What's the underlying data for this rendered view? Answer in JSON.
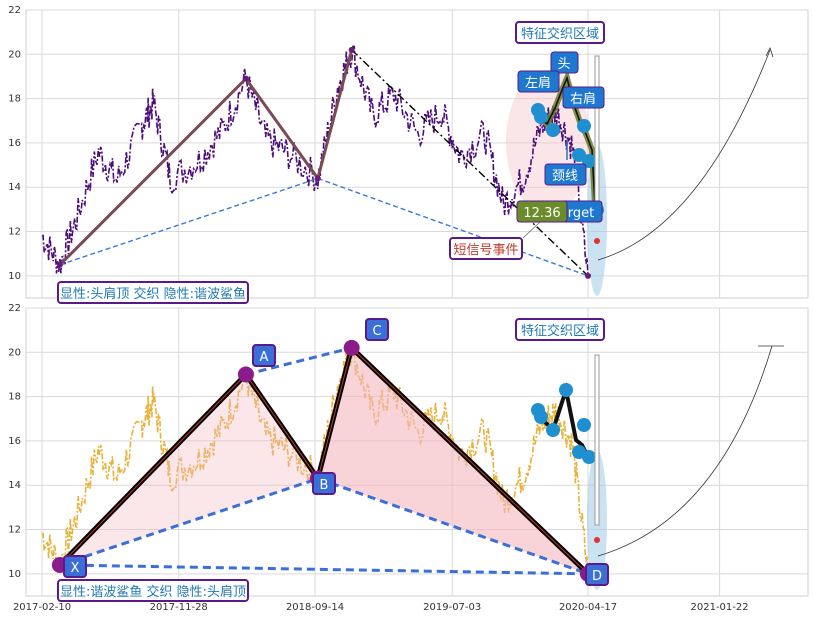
{
  "chart_data": [
    {
      "type": "line",
      "panel": "top",
      "ylim": [
        9,
        22
      ],
      "yticks": [
        10,
        12,
        14,
        16,
        18,
        20,
        22
      ],
      "grid": true,
      "series": [
        {
          "role": "price",
          "color": "#4b0d7a"
        },
        {
          "role": "harmonic-legs",
          "color": "#7a4a55",
          "points": [
            [
              "2017-03-20",
              10.5
            ],
            [
              "2018-04-20",
              18.9
            ],
            [
              "2018-09-20",
              14.4
            ],
            [
              "2018-12-01",
              20.2
            ]
          ]
        },
        {
          "role": "shoulders-outline",
          "color": "#6b7d2a"
        },
        {
          "role": "projection",
          "color": "#000000",
          "style": "dashdot",
          "points": [
            [
              "2018-12-01",
              20.2
            ],
            [
              "2020-04-17",
              10.0
            ]
          ]
        },
        {
          "role": "base-line",
          "color": "#3a7bd5",
          "style": "dashed",
          "points": [
            [
              "2017-03-20",
              10.5
            ],
            [
              "2018-09-20",
              14.4
            ],
            [
              "2020-04-17",
              10.0
            ]
          ]
        }
      ],
      "annotations": {
        "region_title": "特征交织区域",
        "head": "头",
        "left_shoulder": "左肩",
        "right_shoulder": "右肩",
        "neckline": "颈线",
        "target_value": "12.36",
        "target_word": "rget",
        "short_signal": "短信号事件",
        "footer": "显性:头肩顶 交织 隐性:谐波鲨鱼"
      }
    },
    {
      "type": "line",
      "panel": "bottom",
      "ylim": [
        9,
        22
      ],
      "yticks": [
        10,
        12,
        14,
        16,
        18,
        20,
        22
      ],
      "xticks": [
        "2017-02-10",
        "2017-11-28",
        "2018-09-14",
        "2019-07-03",
        "2020-04-17",
        "2021-01-22"
      ],
      "grid": true,
      "series": [
        {
          "role": "price",
          "color": "#e8b23a"
        },
        {
          "role": "xabcd",
          "color": "#000000",
          "points": [
            [
              "2017-03-20",
              10.4
            ],
            [
              "2018-04-20",
              19.0
            ],
            [
              "2018-09-20",
              14.3
            ],
            [
              "2018-12-01",
              20.2
            ],
            [
              "2020-04-17",
              10.0
            ]
          ]
        },
        {
          "role": "blue-dashed",
          "color": "#3a6fd8",
          "style": "dashed"
        }
      ],
      "points": {
        "X": "X",
        "A": "A",
        "B": "B",
        "C": "C",
        "D": "D"
      },
      "annotations": {
        "region_title": "特征交织区域",
        "footer": "显性:谐波鲨鱼 交织 隐性:头肩顶"
      }
    }
  ],
  "colors": {
    "grid": "#d9d9d9",
    "label_border": "#5b1a8a",
    "label_text": "#1f78b4",
    "point_fill": "#8b1a8b",
    "hs_dot": "#1f8fd0",
    "box_blue": "#1f78d0"
  }
}
